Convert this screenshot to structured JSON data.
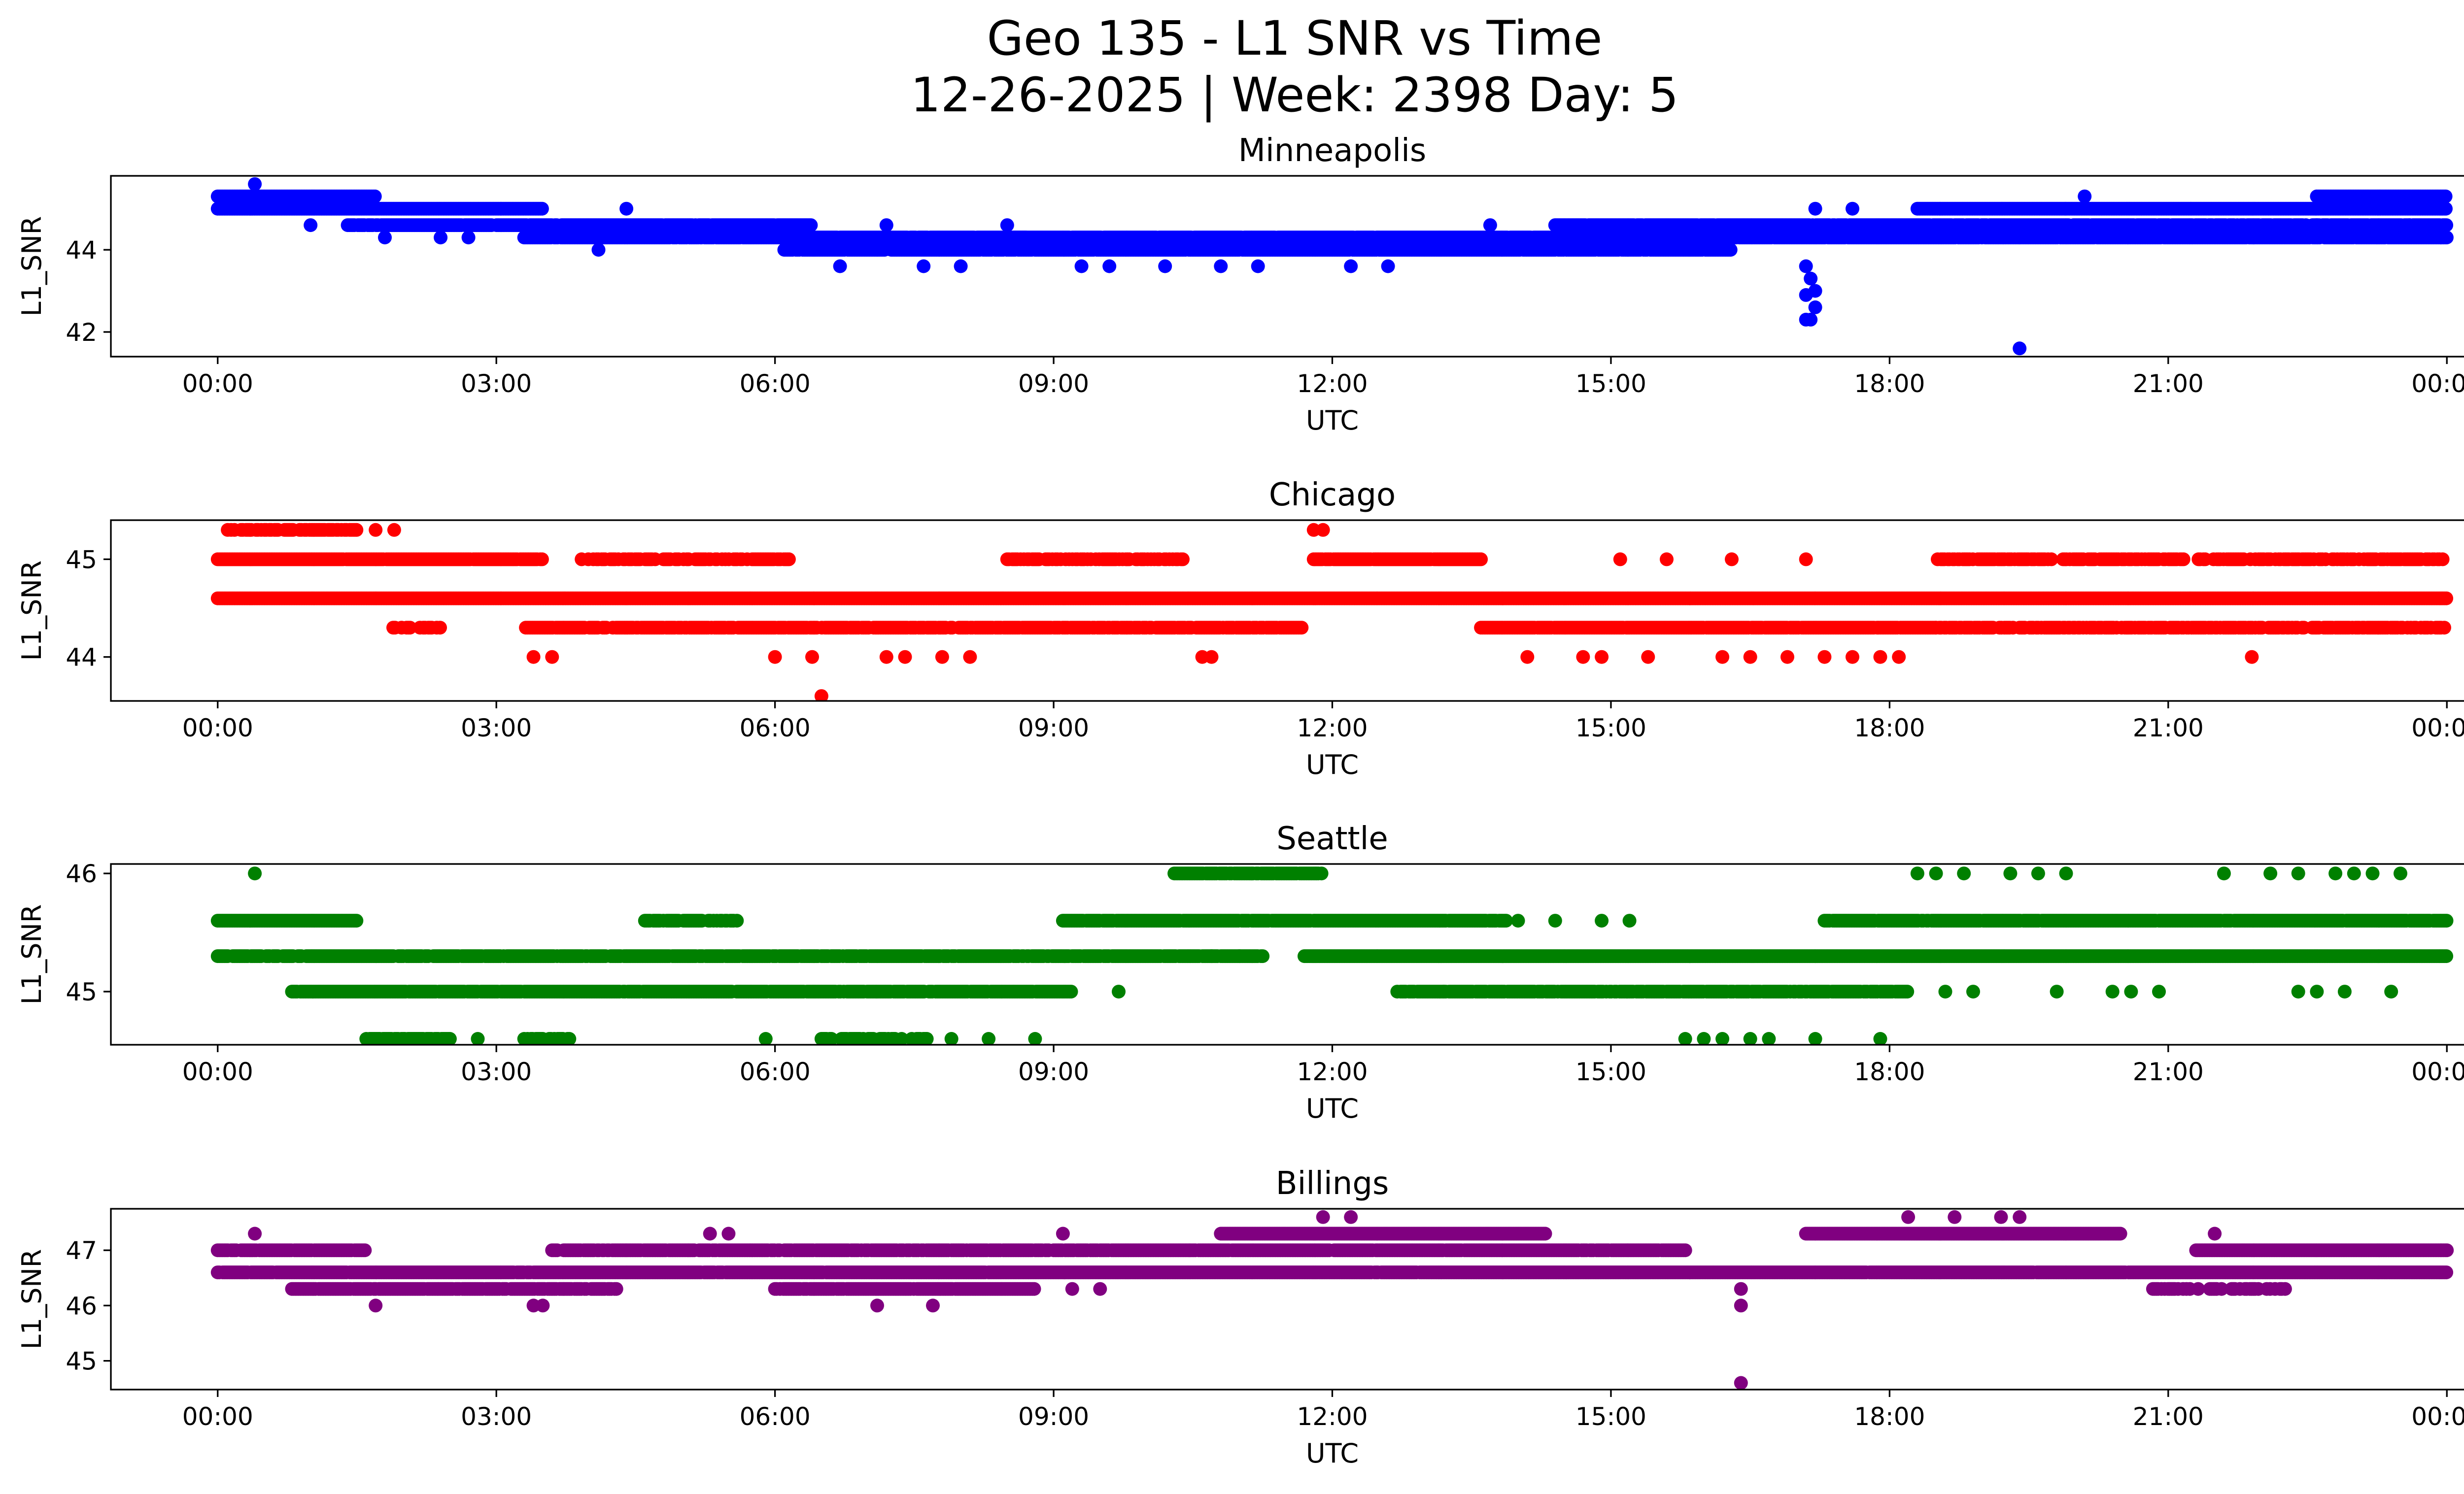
{
  "figure": {
    "title_line1": "Geo 135 - L1 SNR vs Time",
    "title_line2": "12-26-2025 | Week: 2398 Day: 5"
  },
  "chart_data": [
    {
      "type": "scatter",
      "title": "Minneapolis",
      "xlabel": "UTC",
      "ylabel": "L1_SNR",
      "color": "#0000ff",
      "xlim": [
        -1.15,
        25.15
      ],
      "ylim": [
        41.4,
        45.8
      ],
      "xticks": [
        0,
        3,
        6,
        9,
        12,
        15,
        18,
        21,
        24
      ],
      "xticklabels": [
        "00:00",
        "03:00",
        "06:00",
        "09:00",
        "12:00",
        "15:00",
        "18:00",
        "21:00",
        "00:00"
      ],
      "yticks": [
        42,
        44
      ],
      "yticklabels": [
        "42",
        "44"
      ],
      "bands": [
        {
          "y": 45.3,
          "from": 0,
          "to": 1.7,
          "density": 1
        },
        {
          "y": 45.0,
          "from": 0,
          "to": 3.5,
          "density": 1
        },
        {
          "y": 44.6,
          "from": 1.4,
          "to": 6.4,
          "density": 0.95
        },
        {
          "y": 44.3,
          "from": 3.3,
          "to": 8.7,
          "density": 0.95
        },
        {
          "y": 44.0,
          "from": 6.1,
          "to": 16.3,
          "density": 0.95
        },
        {
          "y": 44.3,
          "from": 8.5,
          "to": 24,
          "density": 0.95
        },
        {
          "y": 44.6,
          "from": 14.4,
          "to": 24,
          "density": 0.9
        },
        {
          "y": 45.0,
          "from": 18.3,
          "to": 24,
          "density": 1
        },
        {
          "y": 45.3,
          "from": 22.6,
          "to": 24,
          "density": 1
        }
      ],
      "points": [
        [
          0.4,
          45.6
        ],
        [
          1.0,
          44.6
        ],
        [
          1.8,
          44.3
        ],
        [
          2.4,
          44.3
        ],
        [
          2.7,
          44.3
        ],
        [
          4.1,
          44.0
        ],
        [
          4.4,
          45.0
        ],
        [
          5.2,
          44.3
        ],
        [
          6.7,
          43.6
        ],
        [
          7.2,
          44.6
        ],
        [
          7.6,
          43.6
        ],
        [
          8.0,
          43.6
        ],
        [
          8.5,
          44.6
        ],
        [
          9.3,
          43.6
        ],
        [
          9.6,
          43.6
        ],
        [
          10.2,
          43.6
        ],
        [
          10.8,
          43.6
        ],
        [
          11.2,
          43.6
        ],
        [
          12.2,
          43.6
        ],
        [
          12.6,
          43.6
        ],
        [
          13.7,
          44.6
        ],
        [
          17.1,
          43.6
        ],
        [
          17.15,
          43.3
        ],
        [
          17.2,
          43.0
        ],
        [
          17.1,
          42.9
        ],
        [
          17.2,
          42.6
        ],
        [
          17.15,
          42.3
        ],
        [
          17.1,
          42.3
        ],
        [
          17.2,
          45.0
        ],
        [
          17.6,
          45.0
        ],
        [
          19.4,
          41.6
        ],
        [
          19.4,
          44.3
        ],
        [
          20.1,
          45.3
        ],
        [
          22.6,
          44.6
        ],
        [
          23.6,
          44.6
        ]
      ]
    },
    {
      "type": "scatter",
      "title": "Chicago",
      "xlabel": "UTC",
      "ylabel": "L1_SNR",
      "color": "#ff0000",
      "xlim": [
        -1.15,
        25.15
      ],
      "ylim": [
        43.55,
        45.4
      ],
      "xticks": [
        0,
        3,
        6,
        9,
        12,
        15,
        18,
        21,
        24
      ],
      "xticklabels": [
        "00:00",
        "03:00",
        "06:00",
        "09:00",
        "12:00",
        "15:00",
        "18:00",
        "21:00",
        "00:00"
      ],
      "yticks": [
        44,
        45
      ],
      "yticklabels": [
        "44",
        "45"
      ],
      "bands": [
        {
          "y": 44.6,
          "from": 0,
          "to": 24,
          "density": 1
        },
        {
          "y": 45.0,
          "from": 0,
          "to": 3.5,
          "density": 0.95
        },
        {
          "y": 45.0,
          "from": 3.9,
          "to": 6.2,
          "density": 0.55
        },
        {
          "y": 45.0,
          "from": 8.5,
          "to": 10.4,
          "density": 0.6
        },
        {
          "y": 45.0,
          "from": 11.8,
          "to": 13.6,
          "density": 0.95
        },
        {
          "y": 45.0,
          "from": 18.5,
          "to": 24,
          "density": 0.7
        },
        {
          "y": 44.3,
          "from": 1.8,
          "to": 2.4,
          "density": 0.5
        },
        {
          "y": 44.3,
          "from": 3.3,
          "to": 11.7,
          "density": 0.85
        },
        {
          "y": 44.3,
          "from": 13.6,
          "to": 18.5,
          "density": 0.95
        },
        {
          "y": 44.3,
          "from": 18.5,
          "to": 24,
          "density": 0.7
        },
        {
          "y": 45.3,
          "from": 0,
          "to": 1.5,
          "density": 0.6
        }
      ],
      "points": [
        [
          1.7,
          45.3
        ],
        [
          1.9,
          45.3
        ],
        [
          11.8,
          45.3
        ],
        [
          11.9,
          45.3
        ],
        [
          3.4,
          44.0
        ],
        [
          3.6,
          44.0
        ],
        [
          6.0,
          44.0
        ],
        [
          6.4,
          44.0
        ],
        [
          6.5,
          43.6
        ],
        [
          7.2,
          44.0
        ],
        [
          7.4,
          44.0
        ],
        [
          7.8,
          44.0
        ],
        [
          8.1,
          44.0
        ],
        [
          10.6,
          44.0
        ],
        [
          10.7,
          44.0
        ],
        [
          14.1,
          44.0
        ],
        [
          14.7,
          44.0
        ],
        [
          14.9,
          44.0
        ],
        [
          15.4,
          44.0
        ],
        [
          16.2,
          44.0
        ],
        [
          16.5,
          44.0
        ],
        [
          16.9,
          44.0
        ],
        [
          17.3,
          44.0
        ],
        [
          17.6,
          44.0
        ],
        [
          17.9,
          44.0
        ],
        [
          18.1,
          44.0
        ],
        [
          21.9,
          44.0
        ],
        [
          15.1,
          45.0
        ],
        [
          15.6,
          45.0
        ],
        [
          16.3,
          45.0
        ],
        [
          17.1,
          45.0
        ]
      ]
    },
    {
      "type": "scatter",
      "title": "Seattle",
      "xlabel": "UTC",
      "ylabel": "L1_SNR",
      "color": "#008000",
      "xlim": [
        -1.15,
        25.15
      ],
      "ylim": [
        44.55,
        46.08
      ],
      "xticks": [
        0,
        3,
        6,
        9,
        12,
        15,
        18,
        21,
        24
      ],
      "xticklabels": [
        "00:00",
        "03:00",
        "06:00",
        "09:00",
        "12:00",
        "15:00",
        "18:00",
        "21:00",
        "00:00"
      ],
      "yticks": [
        45,
        46
      ],
      "yticklabels": [
        "45",
        "46"
      ],
      "bands": [
        {
          "y": 45.3,
          "from": 0,
          "to": 11.3,
          "density": 0.9
        },
        {
          "y": 45.3,
          "from": 11.7,
          "to": 24,
          "density": 1
        },
        {
          "y": 45.6,
          "from": 0,
          "to": 1.5,
          "density": 1
        },
        {
          "y": 45.6,
          "from": 4.6,
          "to": 5.6,
          "density": 0.7
        },
        {
          "y": 45.6,
          "from": 9.1,
          "to": 13.9,
          "density": 0.95
        },
        {
          "y": 45.6,
          "from": 17.3,
          "to": 24,
          "density": 0.95
        },
        {
          "y": 45.0,
          "from": 0.8,
          "to": 9.2,
          "density": 0.95
        },
        {
          "y": 45.0,
          "from": 12.7,
          "to": 18.2,
          "density": 0.9
        },
        {
          "y": 46.0,
          "from": 10.3,
          "to": 11.9,
          "density": 0.9
        },
        {
          "y": 44.6,
          "from": 1.6,
          "to": 2.5,
          "density": 0.8
        },
        {
          "y": 44.6,
          "from": 3.3,
          "to": 3.8,
          "density": 0.7
        },
        {
          "y": 44.6,
          "from": 6.5,
          "to": 7.7,
          "density": 0.6
        }
      ],
      "points": [
        [
          0.4,
          46.0
        ],
        [
          2.8,
          44.6
        ],
        [
          5.9,
          44.6
        ],
        [
          7.9,
          44.6
        ],
        [
          8.3,
          44.6
        ],
        [
          8.8,
          44.6
        ],
        [
          15.8,
          44.6
        ],
        [
          16.0,
          44.6
        ],
        [
          16.2,
          44.6
        ],
        [
          16.5,
          44.6
        ],
        [
          16.7,
          44.6
        ],
        [
          17.2,
          44.6
        ],
        [
          17.9,
          44.6
        ],
        [
          9.7,
          45.0
        ],
        [
          13.2,
          45.0
        ],
        [
          18.6,
          45.0
        ],
        [
          18.9,
          45.0
        ],
        [
          19.8,
          45.0
        ],
        [
          20.4,
          45.0
        ],
        [
          20.6,
          45.0
        ],
        [
          20.9,
          45.0
        ],
        [
          22.4,
          45.0
        ],
        [
          22.6,
          45.0
        ],
        [
          22.9,
          45.0
        ],
        [
          23.4,
          45.0
        ],
        [
          10.7,
          45.3
        ],
        [
          11.0,
          45.3
        ],
        [
          14.0,
          45.6
        ],
        [
          14.4,
          45.6
        ],
        [
          14.9,
          45.6
        ],
        [
          15.2,
          45.6
        ],
        [
          18.3,
          46.0
        ],
        [
          18.5,
          46.0
        ],
        [
          18.8,
          46.0
        ],
        [
          19.3,
          46.0
        ],
        [
          19.6,
          46.0
        ],
        [
          19.9,
          46.0
        ],
        [
          21.6,
          46.0
        ],
        [
          22.1,
          46.0
        ],
        [
          22.4,
          46.0
        ],
        [
          22.8,
          46.0
        ],
        [
          23.0,
          46.0
        ],
        [
          23.2,
          46.0
        ],
        [
          23.5,
          46.0
        ]
      ]
    },
    {
      "type": "scatter",
      "title": "Billings",
      "xlabel": "UTC",
      "ylabel": "L1_SNR",
      "color": "#800080",
      "xlim": [
        -1.15,
        25.15
      ],
      "ylim": [
        44.48,
        47.75
      ],
      "xticks": [
        0,
        3,
        6,
        9,
        12,
        15,
        18,
        21,
        24
      ],
      "xticklabels": [
        "00:00",
        "03:00",
        "06:00",
        "09:00",
        "12:00",
        "15:00",
        "18:00",
        "21:00",
        "00:00"
      ],
      "yticks": [
        45,
        46,
        47
      ],
      "yticklabels": [
        "45",
        "46",
        "47"
      ],
      "bands": [
        {
          "y": 46.6,
          "from": 0,
          "to": 24,
          "density": 0.98
        },
        {
          "y": 47.0,
          "from": 0,
          "to": 1.6,
          "density": 0.95
        },
        {
          "y": 47.0,
          "from": 3.6,
          "to": 9.5,
          "density": 0.9
        },
        {
          "y": 47.0,
          "from": 9.5,
          "to": 15.8,
          "density": 0.95
        },
        {
          "y": 47.0,
          "from": 21.3,
          "to": 24,
          "density": 1
        },
        {
          "y": 47.3,
          "from": 10.8,
          "to": 14.3,
          "density": 1
        },
        {
          "y": 47.3,
          "from": 17.1,
          "to": 20.5,
          "density": 1
        },
        {
          "y": 46.3,
          "from": 0.8,
          "to": 4.3,
          "density": 0.9
        },
        {
          "y": 46.3,
          "from": 6.0,
          "to": 8.8,
          "density": 0.95
        },
        {
          "y": 46.3,
          "from": 20.8,
          "to": 22.3,
          "density": 0.5
        }
      ],
      "points": [
        [
          0.4,
          47.3
        ],
        [
          1.7,
          46.0
        ],
        [
          3.4,
          46.0
        ],
        [
          3.5,
          46.0
        ],
        [
          5.3,
          47.3
        ],
        [
          5.5,
          47.3
        ],
        [
          7.1,
          46.0
        ],
        [
          7.7,
          46.0
        ],
        [
          9.1,
          47.3
        ],
        [
          9.2,
          46.3
        ],
        [
          9.5,
          46.3
        ],
        [
          12.2,
          47.6
        ],
        [
          11.9,
          47.6
        ],
        [
          16.4,
          46.3
        ],
        [
          16.4,
          46.0
        ],
        [
          16.4,
          44.6
        ],
        [
          18.2,
          47.6
        ],
        [
          18.7,
          47.6
        ],
        [
          19.2,
          47.6
        ],
        [
          19.4,
          47.6
        ],
        [
          21.5,
          47.3
        ]
      ]
    }
  ]
}
